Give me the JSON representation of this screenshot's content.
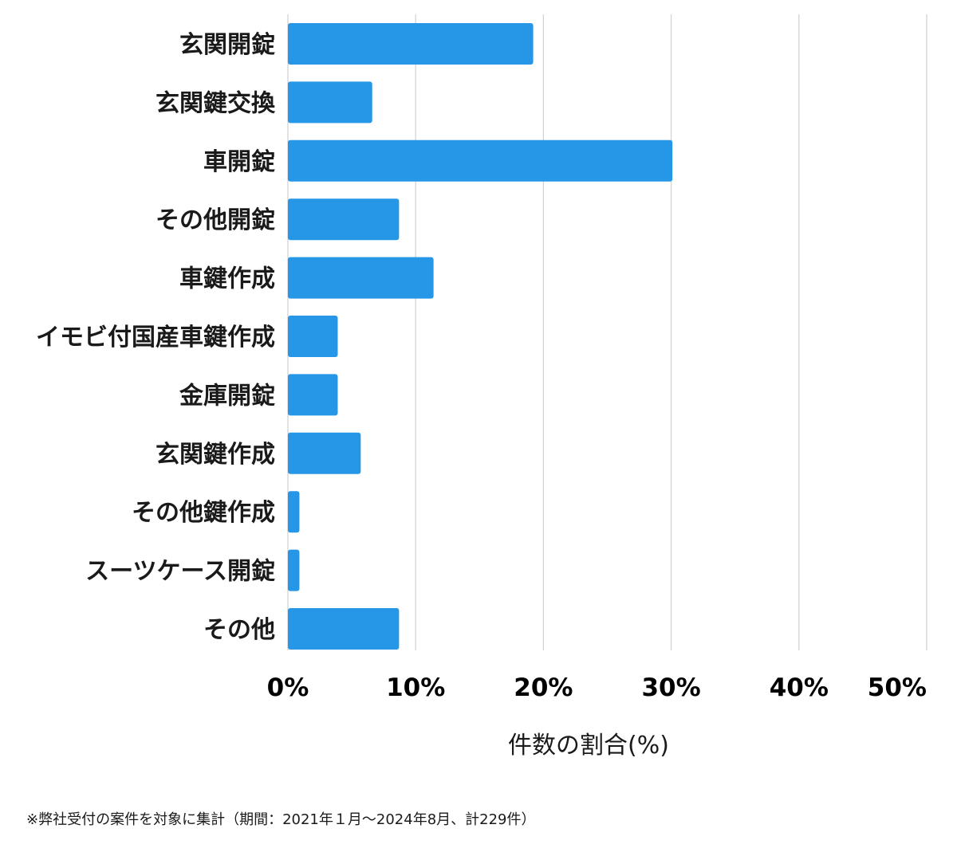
{
  "chart_data": {
    "type": "bar",
    "orientation": "horizontal",
    "categories": [
      "玄関開錠",
      "玄関鍵交換",
      "車開錠",
      "その他開錠",
      "車鍵作成",
      "イモビ付国産車鍵作成",
      "金庫開錠",
      "玄関鍵作成",
      "その他鍵作成",
      "スーツケース開錠",
      "その他"
    ],
    "values": [
      19.2,
      6.6,
      30.1,
      8.7,
      11.4,
      3.9,
      3.9,
      5.7,
      0.9,
      0.9,
      8.7
    ],
    "xlim": [
      0,
      50
    ],
    "xticks": [
      0,
      10,
      20,
      30,
      40,
      50
    ],
    "xtick_labels": [
      "0%",
      "10%",
      "20%",
      "30%",
      "40%",
      "50%"
    ],
    "xlabel": "件数の割合(%)",
    "title": "",
    "grid": "vertical",
    "bar_color": "#2696e6",
    "grid_color": "#d3d3d3"
  },
  "footnote": "※弊社受付の案件を対象に集計（期間：2021年１月～2024年8月、計229件）"
}
